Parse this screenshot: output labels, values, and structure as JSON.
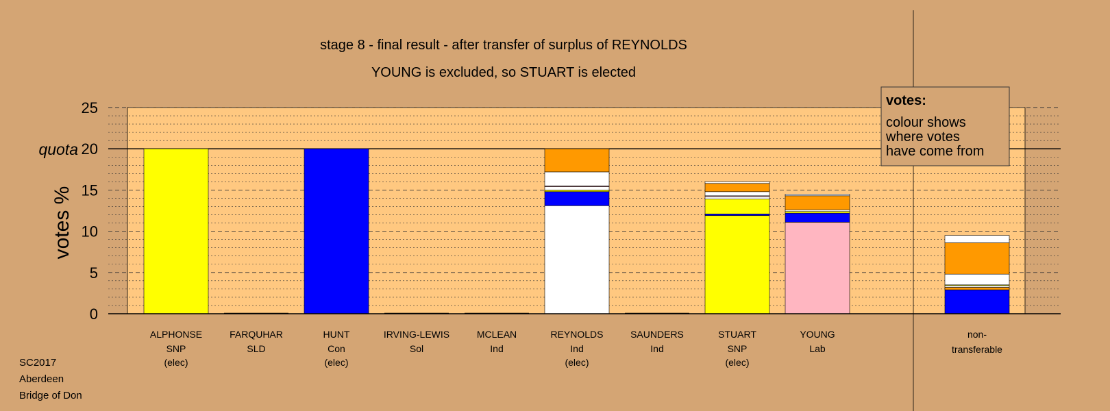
{
  "chart_data": {
    "type": "bar",
    "title": "stage 8 - final result - after transfer of surplus of REYNOLDS",
    "subtitle": "YOUNG is excluded, so STUART is elected",
    "ylabel": "votes %",
    "ylim": [
      0,
      25
    ],
    "yticks": [
      0,
      5,
      10,
      15,
      20,
      25
    ],
    "quota": 20,
    "quota_label": "quota",
    "legend": {
      "title": "votes:",
      "lines": [
        "colour shows",
        "where votes",
        "have come from"
      ],
      "position": "top-right"
    },
    "candidates": [
      {
        "name": "ALPHONSE",
        "party": "SNP",
        "status": "(elec)",
        "segments": [
          {
            "color": "#ffff00",
            "value": 20.0
          }
        ]
      },
      {
        "name": "FARQUHAR",
        "party": "SLD",
        "status": "",
        "segments": []
      },
      {
        "name": "HUNT",
        "party": "Con",
        "status": "(elec)",
        "segments": [
          {
            "color": "#0000ff",
            "value": 20.0
          }
        ]
      },
      {
        "name": "IRVING-LEWIS",
        "party": "Sol",
        "status": "",
        "segments": []
      },
      {
        "name": "MCLEAN",
        "party": "Ind",
        "status": "",
        "segments": []
      },
      {
        "name": "REYNOLDS",
        "party": "Ind",
        "status": "(elec)",
        "segments": [
          {
            "color": "#ffffff",
            "value": 13.1
          },
          {
            "color": "#0000ff",
            "value": 1.7
          },
          {
            "color": "#ffff00",
            "value": 0.2
          },
          {
            "color": "#ffffff",
            "value": 0.4
          },
          {
            "color": "#ffb6c1",
            "value": 0.1
          },
          {
            "color": "#ffffff",
            "value": 1.7
          },
          {
            "color": "#ff9900",
            "value": 2.8
          }
        ]
      },
      {
        "name": "SAUNDERS",
        "party": "Ind",
        "status": "",
        "segments": []
      },
      {
        "name": "STUART",
        "party": "SNP",
        "status": "(elec)",
        "segments": [
          {
            "color": "#ffff00",
            "value": 11.9
          },
          {
            "color": "#0000ff",
            "value": 0.2
          },
          {
            "color": "#ffff00",
            "value": 1.8
          },
          {
            "color": "#ffffff",
            "value": 0.3
          },
          {
            "color": "#ffb6c1",
            "value": 0.1
          },
          {
            "color": "#ffffff",
            "value": 0.5
          },
          {
            "color": "#ff9900",
            "value": 1.0
          },
          {
            "color": "#ffffff",
            "value": 0.2
          }
        ]
      },
      {
        "name": "YOUNG",
        "party": "Lab",
        "status": "",
        "segments": [
          {
            "color": "#ffb6c1",
            "value": 11.1
          },
          {
            "color": "#0000ff",
            "value": 1.1
          },
          {
            "color": "#ffff00",
            "value": 0.2
          },
          {
            "color": "#ffffff",
            "value": 0.2
          },
          {
            "color": "#ff9900",
            "value": 1.7
          },
          {
            "color": "#ffffff",
            "value": 0.2
          }
        ]
      }
    ],
    "nontransferable": {
      "label_lines": [
        "non-",
        "transferable"
      ],
      "segments": [
        {
          "color": "#0000ff",
          "value": 2.9
        },
        {
          "color": "#ff9900",
          "value": 0.3
        },
        {
          "color": "#ffffff",
          "value": 0.2
        },
        {
          "color": "#ffff00",
          "value": 0.1
        },
        {
          "color": "#ffffff",
          "value": 1.3
        },
        {
          "color": "#ff9900",
          "value": 3.8
        },
        {
          "color": "#ffffff",
          "value": 0.9
        }
      ]
    }
  },
  "footer": {
    "line1": "SC2017",
    "line2": "Aberdeen",
    "line3": "Bridge of Don"
  }
}
